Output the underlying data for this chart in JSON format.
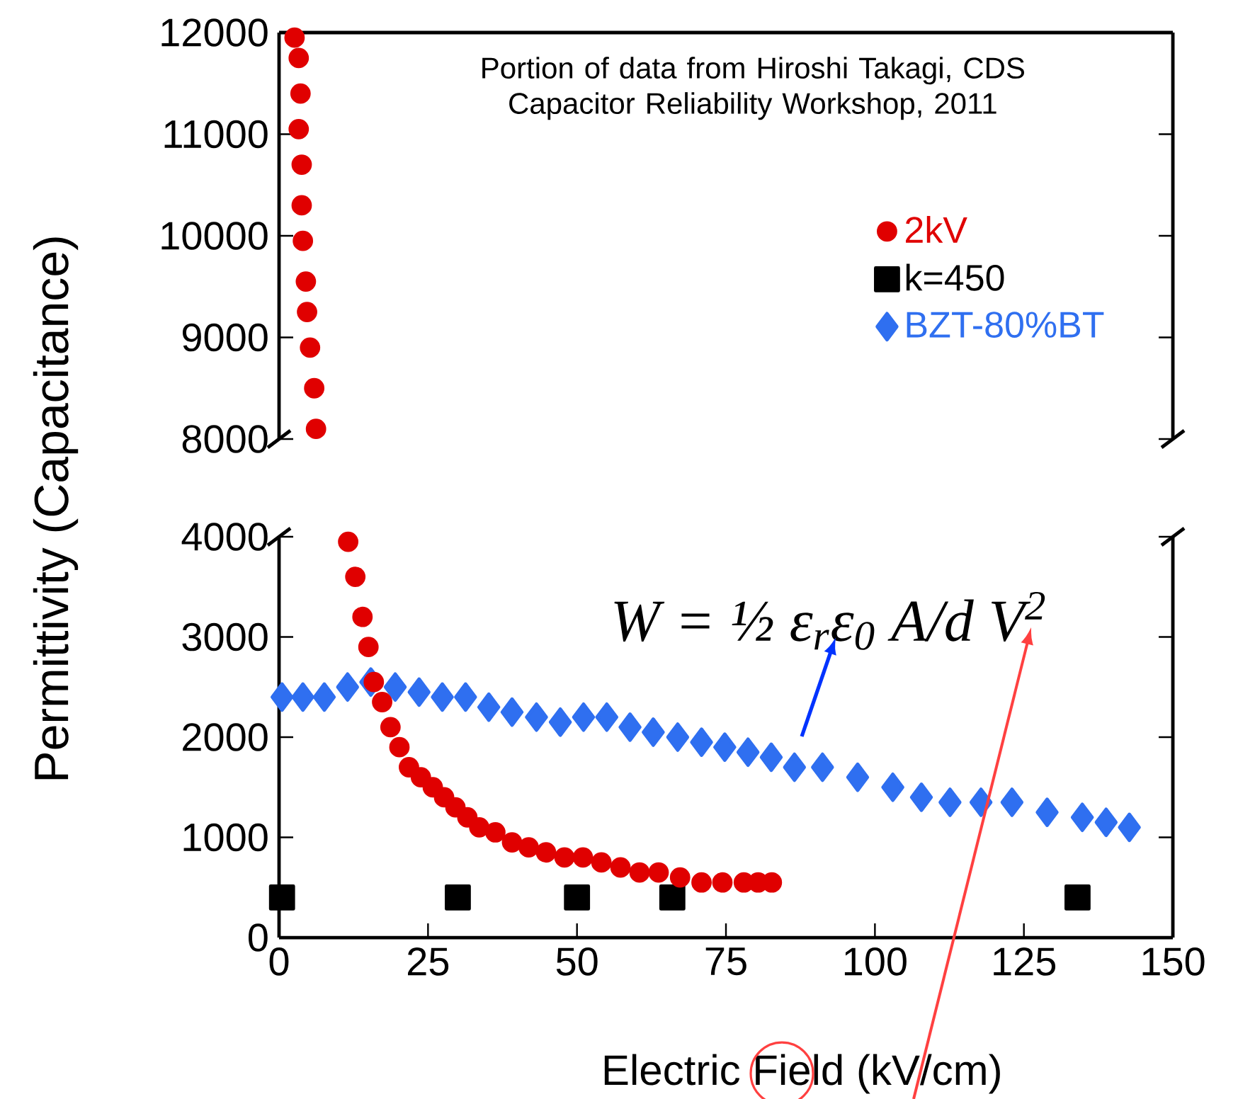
{
  "chart_data": [
    {
      "type": "scatter",
      "xlim": [
        0,
        150
      ],
      "ylim": [
        8000,
        12000
      ],
      "yticks": [
        8000,
        9000,
        10000,
        11000,
        12000
      ],
      "tick_labels": "y",
      "annotations": [
        "Portion of data from Hiroshi Takagi, CDS Capacitor Reliability Workshop, 2011"
      ],
      "series": [
        {
          "color": "#e00000",
          "marker": "circle",
          "x": [
            2.6,
            3.3,
            3.6,
            3.3,
            3.8,
            3.8,
            4.0,
            4.5,
            4.7,
            5.2,
            5.9,
            6.2
          ],
          "values": [
            11950,
            11750,
            11400,
            11050,
            10700,
            10300,
            9950,
            9550,
            9250,
            8900,
            8500,
            8100
          ]
        }
      ]
    },
    {
      "type": "scatter",
      "xlim": [
        0,
        150
      ],
      "ylim": [
        0,
        4000
      ],
      "xticks": [
        0,
        25,
        50,
        75,
        100,
        125,
        150
      ],
      "yticks": [
        0,
        1000,
        2000,
        3000,
        4000
      ],
      "xlabel": "Electric Field (kV/cm)",
      "ylabel": "Permittivity (Capacitance)",
      "legend": "top right",
      "annotations": [
        "W = ½ ε$_{r}$ε$_{0}$ A/d V$^{2}$"
      ],
      "series": [
        {
          "name": "2kV",
          "color": "#e00000",
          "marker": "circle",
          "x": [
            11.6,
            12.8,
            14,
            15,
            15.9,
            17.3,
            18.7,
            20.2,
            21.8,
            23.8,
            25.8,
            27.7,
            29.6,
            31.6,
            33.6,
            36.3,
            39.1,
            41.9,
            44.8,
            47.9,
            51,
            54.1,
            57.3,
            60.5,
            63.7,
            67.3,
            70.9,
            74.4,
            78,
            80.4,
            82.7
          ],
          "values": [
            3950,
            3600,
            3200,
            2900,
            2550,
            2350,
            2100,
            1900,
            1700,
            1600,
            1500,
            1400,
            1300,
            1200,
            1100,
            1050,
            950,
            900,
            850,
            800,
            800,
            750,
            700,
            650,
            650,
            600,
            550,
            550,
            550,
            550,
            550
          ]
        },
        {
          "name": "k=450",
          "color": "#000000",
          "marker": "square",
          "x": [
            0.5,
            30,
            50,
            66,
            134
          ],
          "values": [
            400,
            400,
            400,
            400,
            400
          ]
        },
        {
          "name": "BZT-80%BT",
          "color": "#2f6ff0",
          "marker": "diamond",
          "x": [
            0.5,
            4,
            7.6,
            11.5,
            15.4,
            19.5,
            23.5,
            27.4,
            31.3,
            35.2,
            39.1,
            43.2,
            47.2,
            51.1,
            55,
            58.9,
            62.8,
            66.9,
            70.9,
            74.8,
            78.7,
            82.6,
            86.5,
            91.2,
            97.1,
            103,
            107.8,
            112.6,
            117.8,
            123,
            128.9,
            134.8,
            138.8,
            142.7
          ],
          "values": [
            2400,
            2400,
            2400,
            2500,
            2550,
            2500,
            2450,
            2400,
            2400,
            2300,
            2250,
            2200,
            2150,
            2200,
            2200,
            2100,
            2050,
            2000,
            1950,
            1900,
            1850,
            1800,
            1700,
            1700,
            1600,
            1500,
            1400,
            1350,
            1350,
            1350,
            1250,
            1200,
            1150,
            1100
          ]
        }
      ]
    }
  ]
}
